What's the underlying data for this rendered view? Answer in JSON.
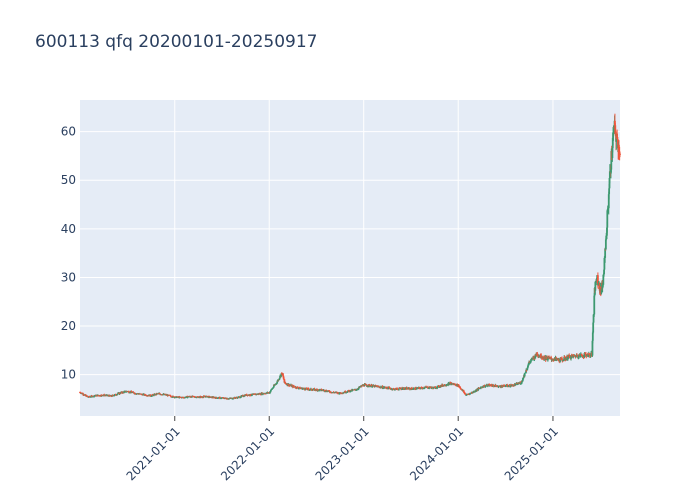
{
  "chart_data": {
    "type": "candlestick",
    "title": "600113 qfq 20200101-20250917",
    "xlabel": "",
    "ylabel": "",
    "x_range": [
      "2020-01-01",
      "2025-09-17"
    ],
    "ylim": [
      1.5,
      66.5
    ],
    "y_ticks": [
      10,
      20,
      30,
      40,
      50,
      60
    ],
    "x_ticks": [
      "2021-01-01",
      "2022-01-01",
      "2023-01-01",
      "2024-01-01",
      "2025-01-01"
    ],
    "grid": true,
    "legend": "none",
    "colors": {
      "up": "#3d9970",
      "down": "#ef553b",
      "plot_bg": "#e5ecf6",
      "grid": "#ffffff"
    },
    "price_path": [
      [
        "2020-01-01",
        6.4
      ],
      [
        "2020-02-01",
        5.4
      ],
      [
        "2020-03-01",
        5.7
      ],
      [
        "2020-04-01",
        5.8
      ],
      [
        "2020-05-01",
        5.6
      ],
      [
        "2020-06-01",
        6.2
      ],
      [
        "2020-07-01",
        6.6
      ],
      [
        "2020-08-01",
        6.2
      ],
      [
        "2020-09-01",
        5.9
      ],
      [
        "2020-10-01",
        5.7
      ],
      [
        "2020-11-01",
        6.1
      ],
      [
        "2020-12-01",
        5.8
      ],
      [
        "2021-01-01",
        5.4
      ],
      [
        "2021-02-01",
        5.3
      ],
      [
        "2021-03-01",
        5.5
      ],
      [
        "2021-04-01",
        5.4
      ],
      [
        "2021-05-01",
        5.5
      ],
      [
        "2021-06-01",
        5.3
      ],
      [
        "2021-07-01",
        5.2
      ],
      [
        "2021-08-01",
        5.1
      ],
      [
        "2021-09-01",
        5.3
      ],
      [
        "2021-10-01",
        5.8
      ],
      [
        "2021-11-01",
        5.9
      ],
      [
        "2021-12-01",
        6.1
      ],
      [
        "2022-01-01",
        6.3
      ],
      [
        "2022-02-01",
        8.6
      ],
      [
        "2022-02-20",
        10.4
      ],
      [
        "2022-03-01",
        8.3
      ],
      [
        "2022-04-01",
        7.6
      ],
      [
        "2022-05-01",
        7.2
      ],
      [
        "2022-06-01",
        7.0
      ],
      [
        "2022-07-01",
        6.9
      ],
      [
        "2022-08-01",
        6.8
      ],
      [
        "2022-09-01",
        6.4
      ],
      [
        "2022-10-01",
        6.2
      ],
      [
        "2022-11-01",
        6.6
      ],
      [
        "2022-12-01",
        6.9
      ],
      [
        "2023-01-01",
        7.9
      ],
      [
        "2023-02-01",
        7.7
      ],
      [
        "2023-03-01",
        7.5
      ],
      [
        "2023-04-01",
        7.3
      ],
      [
        "2023-05-01",
        7.0
      ],
      [
        "2023-06-01",
        7.2
      ],
      [
        "2023-07-01",
        7.1
      ],
      [
        "2023-08-01",
        7.2
      ],
      [
        "2023-09-01",
        7.4
      ],
      [
        "2023-10-01",
        7.3
      ],
      [
        "2023-11-01",
        7.8
      ],
      [
        "2023-12-01",
        8.2
      ],
      [
        "2024-01-01",
        7.8
      ],
      [
        "2024-02-01",
        5.8
      ],
      [
        "2024-03-01",
        6.5
      ],
      [
        "2024-04-01",
        7.5
      ],
      [
        "2024-05-01",
        7.9
      ],
      [
        "2024-06-01",
        7.6
      ],
      [
        "2024-07-01",
        7.7
      ],
      [
        "2024-08-01",
        7.8
      ],
      [
        "2024-09-01",
        8.4
      ],
      [
        "2024-10-01",
        12.5
      ],
      [
        "2024-11-01",
        14.2
      ],
      [
        "2024-12-01",
        13.4
      ],
      [
        "2025-01-01",
        13.2
      ],
      [
        "2025-02-01",
        13.0
      ],
      [
        "2025-03-01",
        13.6
      ],
      [
        "2025-04-01",
        13.9
      ],
      [
        "2025-05-01",
        14.0
      ],
      [
        "2025-06-01",
        14.2
      ],
      [
        "2025-06-10",
        27.5
      ],
      [
        "2025-06-20",
        30.0
      ],
      [
        "2025-07-05",
        27.0
      ],
      [
        "2025-07-15",
        30.0
      ],
      [
        "2025-07-25",
        38.0
      ],
      [
        "2025-08-05",
        48.0
      ],
      [
        "2025-08-15",
        55.0
      ],
      [
        "2025-08-25",
        61.0
      ],
      [
        "2025-09-05",
        58.0
      ],
      [
        "2025-09-17",
        56.0
      ]
    ]
  }
}
